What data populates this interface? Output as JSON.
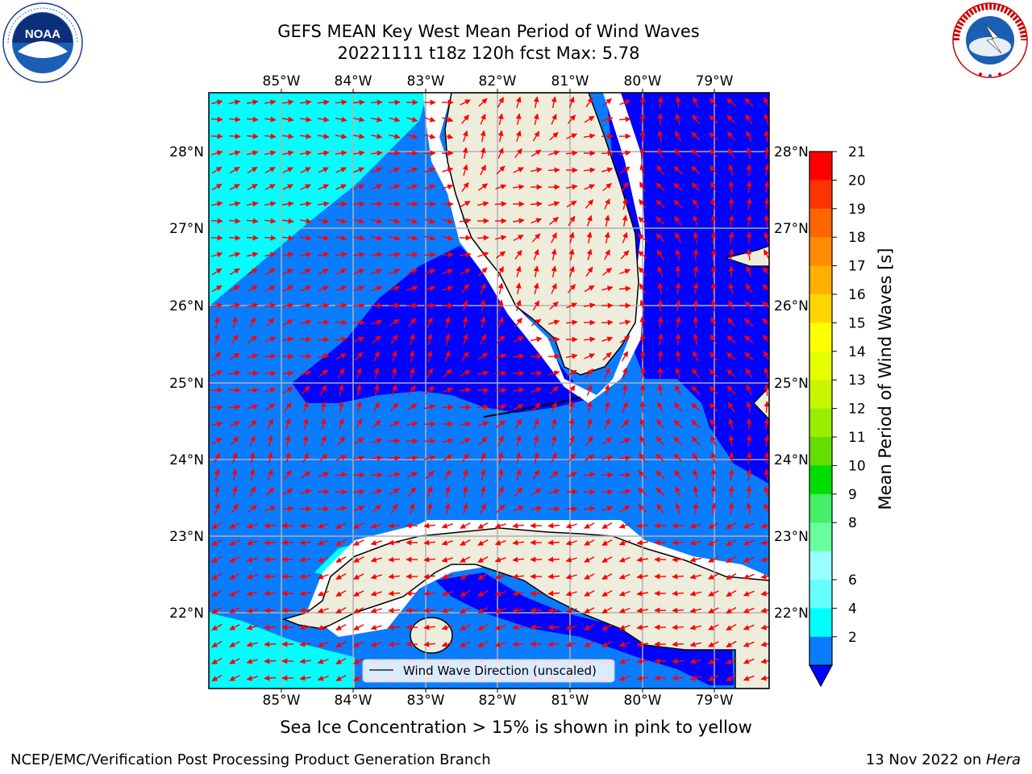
{
  "header": {
    "title_line1": "GEFS MEAN Key West Mean Period of Wind Waves",
    "title_line2": "20221111 t18z 120h fcst   Max: 5.78"
  },
  "map": {
    "lon_ticks": [
      "85°W",
      "84°W",
      "83°W",
      "82°W",
      "81°W",
      "80°W",
      "79°W"
    ],
    "lat_ticks": [
      "28°N",
      "27°N",
      "26°N",
      "25°N",
      "24°N",
      "23°N",
      "22°N"
    ],
    "legend_label": "Wind Wave Direction (unscaled)",
    "colors": {
      "land": "#eeeddc",
      "level_2_4": "#0a7cff",
      "level_4_6": "#00ffff",
      "deep": "#0202ff",
      "arrow": "#ff0000",
      "grid": "#b0b0b0"
    }
  },
  "colorbar": {
    "label": "Mean Period of Wind Waves [s]",
    "ticks": [
      "21",
      "20",
      "19",
      "18",
      "17",
      "16",
      "15",
      "14",
      "13",
      "12",
      "11",
      "10",
      "9",
      "8",
      "6",
      "4",
      "2"
    ],
    "colors": [
      "#ff0000",
      "#ff3300",
      "#ff6600",
      "#ff8c00",
      "#ffb000",
      "#ffd600",
      "#ffff00",
      "#e6ff00",
      "#c8f500",
      "#99ee00",
      "#66dd00",
      "#00dd00",
      "#44ee66",
      "#66ff99",
      "#99ffff",
      "#66ffff",
      "#00ffff",
      "#0a7cff"
    ]
  },
  "footer": {
    "note": "Sea Ice Concentration > 15% is shown in pink to yellow",
    "producer": "NCEP/EMC/Verification Post Processing Product Generation Branch",
    "date": "13 Nov 2022 on ",
    "machine": "Hera"
  }
}
